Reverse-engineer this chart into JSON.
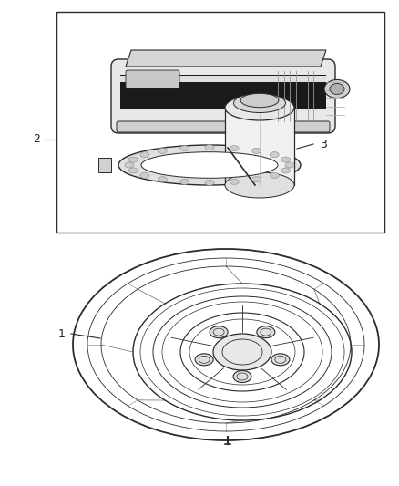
{
  "background_color": "#ffffff",
  "line_color": "#2a2a2a",
  "label_color": "#222222",
  "label_fontsize": 9,
  "fig_width": 4.38,
  "fig_height": 5.33,
  "dpi": 100
}
